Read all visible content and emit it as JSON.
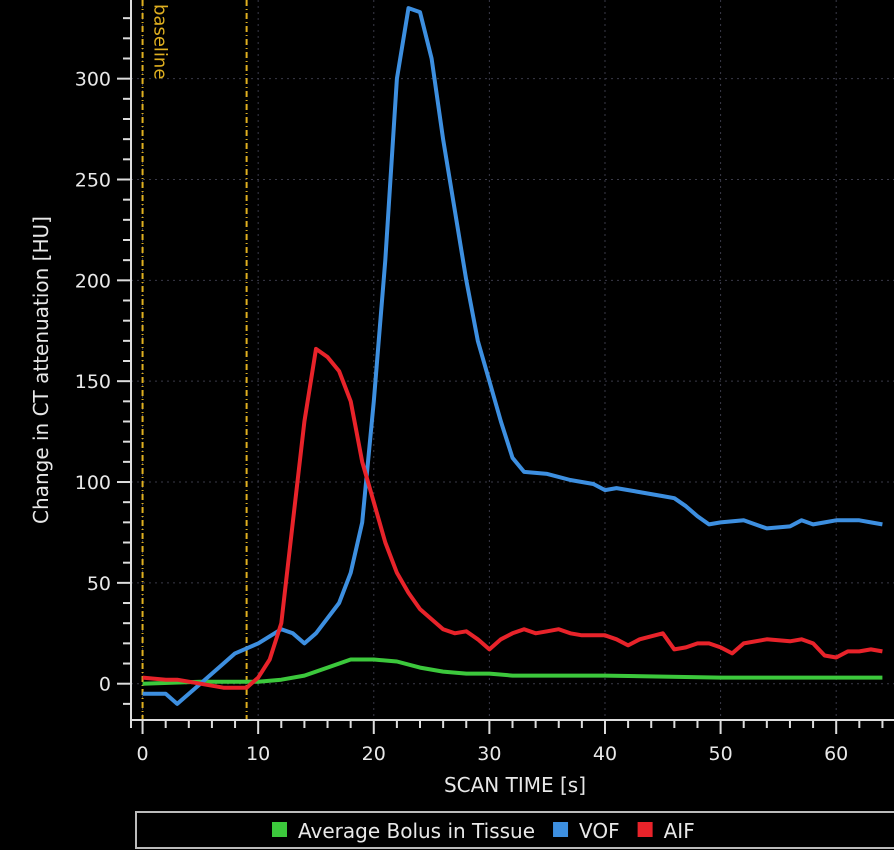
{
  "chart_data": {
    "type": "line",
    "title": "",
    "xlabel": "SCAN TIME [s]",
    "ylabel": "Change in CT attenuation [HU]",
    "xlim": [
      -1,
      65
    ],
    "ylim": [
      -18,
      339
    ],
    "xticks": [
      0,
      10,
      20,
      30,
      40,
      50,
      60
    ],
    "yticks": [
      0,
      50,
      100,
      150,
      200,
      250,
      300
    ],
    "grid": true,
    "legend_placement": "bottom",
    "annotations": [
      {
        "text": "baseline",
        "x_start": 0,
        "x_end": 9,
        "color": "#e0b020"
      }
    ],
    "series": [
      {
        "name": "Average Bolus in Tissue",
        "color": "#3cc83c",
        "x": [
          0,
          5,
          10,
          12,
          14,
          16,
          18,
          20,
          22,
          24,
          26,
          28,
          30,
          32,
          40,
          50,
          64
        ],
        "y": [
          0,
          1,
          1,
          2,
          4,
          8,
          12,
          12,
          11,
          8,
          6,
          5,
          5,
          4,
          4,
          3,
          3
        ]
      },
      {
        "name": "VOF",
        "color": "#3d8fe0",
        "x": [
          0,
          2,
          3,
          5,
          7,
          8,
          10,
          12,
          13,
          14,
          15,
          17,
          18,
          19,
          20,
          21,
          22,
          23,
          24,
          25,
          26,
          27,
          28,
          29,
          30,
          31,
          32,
          33,
          35,
          37,
          39,
          40,
          41,
          43,
          45,
          46,
          47,
          48,
          49,
          50,
          52,
          53,
          54,
          56,
          57,
          58,
          59,
          60,
          62,
          63,
          64
        ],
        "y": [
          -5,
          -5,
          -10,
          0,
          10,
          15,
          20,
          27,
          25,
          20,
          25,
          40,
          55,
          80,
          140,
          210,
          300,
          335,
          333,
          310,
          270,
          235,
          200,
          170,
          150,
          130,
          112,
          105,
          104,
          101,
          99,
          96,
          97,
          95,
          93,
          92,
          88,
          83,
          79,
          80,
          81,
          79,
          77,
          78,
          81,
          79,
          80,
          81,
          81,
          80,
          79
        ]
      },
      {
        "name": "AIF",
        "color": "#e8232a",
        "x": [
          0,
          2,
          3,
          5,
          7,
          9,
          10,
          11,
          12,
          13,
          14,
          15,
          16,
          17,
          18,
          19,
          20,
          21,
          22,
          23,
          24,
          25,
          26,
          27,
          28,
          29,
          30,
          31,
          32,
          33,
          34,
          35,
          36,
          37,
          38,
          40,
          41,
          42,
          43,
          45,
          46,
          47,
          48,
          49,
          50,
          51,
          52,
          54,
          56,
          57,
          58,
          59,
          60,
          61,
          62,
          63,
          64
        ],
        "y": [
          3,
          2,
          2,
          0,
          -2,
          -2,
          3,
          12,
          30,
          80,
          130,
          166,
          162,
          155,
          140,
          110,
          90,
          70,
          55,
          45,
          37,
          32,
          27,
          25,
          26,
          22,
          17,
          22,
          25,
          27,
          25,
          26,
          27,
          25,
          24,
          24,
          22,
          19,
          22,
          25,
          17,
          18,
          20,
          20,
          18,
          15,
          20,
          22,
          21,
          22,
          20,
          14,
          13,
          16,
          16,
          17,
          16
        ]
      }
    ]
  }
}
